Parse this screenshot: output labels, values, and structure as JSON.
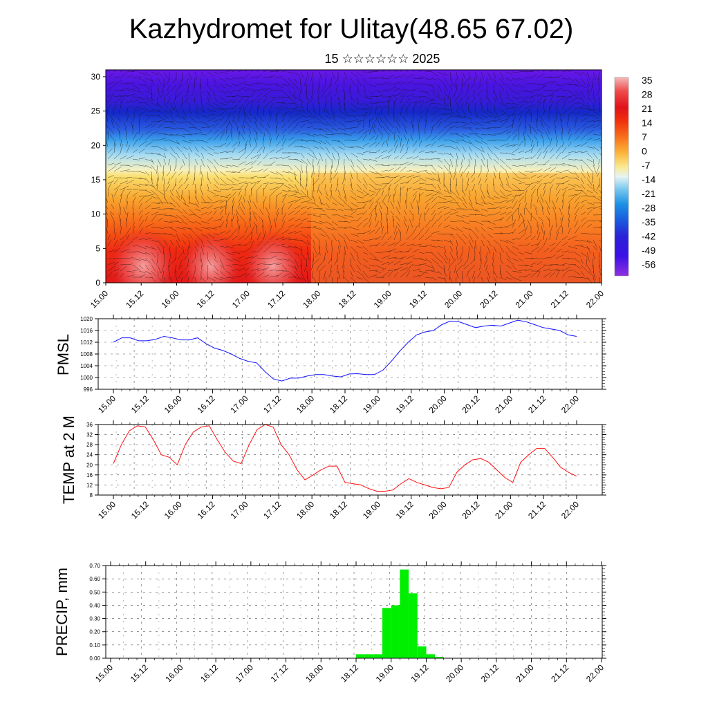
{
  "title": "Kazhydromet for Ulitay(48.65 67.02)",
  "subtitle": "15 ☆☆☆☆☆☆ 2025",
  "time_ticks": [
    "15.00",
    "15.12",
    "16.00",
    "16.12",
    "17.00",
    "17.12",
    "18.00",
    "18.12",
    "19.00",
    "19.12",
    "20.00",
    "20.12",
    "21.00",
    "21.12",
    "22.00"
  ],
  "chart_data": [
    {
      "type": "heatmap",
      "name": "temperature cross-section with wind barbs",
      "y_ticks": [
        0,
        5,
        10,
        15,
        20,
        25,
        30
      ],
      "ylim": [
        0,
        31
      ],
      "colorbar": {
        "labels": [
          "35",
          "28",
          "21",
          "14",
          "7",
          "0",
          "-7",
          "-14",
          "-21",
          "-28",
          "-35",
          "-42",
          "-49",
          "-56"
        ],
        "colors": [
          "#f4b0b0",
          "#ef3b3b",
          "#e0121a",
          "#f2400a",
          "#f8801c",
          "#fbbb3a",
          "#fbe88a",
          "#bfe8f0",
          "#3cb4ec",
          "#1682e0",
          "#1a50dc",
          "#2a16d6",
          "#3e0fe6",
          "#8a2be2"
        ]
      }
    },
    {
      "type": "line",
      "ylabel": "PMSL",
      "ylim": [
        996,
        1020
      ],
      "y_ticks": [
        996,
        1000,
        1004,
        1008,
        1012,
        1016,
        1020
      ],
      "color": "#1010ff",
      "values": [
        1012,
        1013.5,
        1013.5,
        1012.5,
        1012.5,
        1013,
        1014,
        1013.5,
        1012.8,
        1012.8,
        1013.5,
        1011.5,
        1010,
        1009.2,
        1008,
        1006.5,
        1005.5,
        1005,
        1002,
        999.5,
        998.8,
        999.8,
        999.8,
        1000.5,
        1001,
        1001,
        1000.5,
        1000.2,
        1001.2,
        1001.3,
        1001,
        1001,
        1002.5,
        1005.5,
        1009,
        1012,
        1014.5,
        1015.5,
        1016,
        1018,
        1019.2,
        1019,
        1018,
        1017,
        1017.5,
        1017.8,
        1017.5,
        1018.5,
        1019.5,
        1019,
        1018,
        1017,
        1016.5,
        1016,
        1014.5,
        1014
      ]
    },
    {
      "type": "line",
      "ylabel": "TEMP at 2 M",
      "ylim": [
        8,
        36
      ],
      "y_ticks": [
        8,
        12,
        16,
        20,
        24,
        28,
        32,
        36
      ],
      "color": "#ff1010",
      "values": [
        20.5,
        28,
        33.5,
        35.5,
        35,
        30,
        24,
        23,
        20,
        28,
        33,
        35,
        35.5,
        30,
        25,
        21.5,
        20.5,
        28,
        34,
        36,
        35,
        28,
        24,
        18,
        14,
        16,
        18,
        19.5,
        19.5,
        13,
        12.5,
        12,
        10.5,
        9.5,
        9.5,
        10,
        12.5,
        14.5,
        13,
        12,
        11,
        10.5,
        11,
        17,
        20,
        22,
        22.5,
        21,
        18,
        15,
        13,
        21,
        24,
        26.5,
        26.5,
        23,
        19,
        17,
        15.5
      ]
    },
    {
      "type": "bar",
      "ylabel": "PRECIP, mm",
      "ylim": [
        0,
        0.7
      ],
      "y_ticks": [
        "0.00",
        "0.10",
        "0.20",
        "0.30",
        "0.40",
        "0.50",
        "0.60",
        "0.70"
      ],
      "color": "#00ee00",
      "start_step": 28,
      "values": [
        0.03,
        0.03,
        0.03,
        0.38,
        0.4,
        0.67,
        0.49,
        0.09,
        0.03,
        0.01
      ]
    }
  ]
}
